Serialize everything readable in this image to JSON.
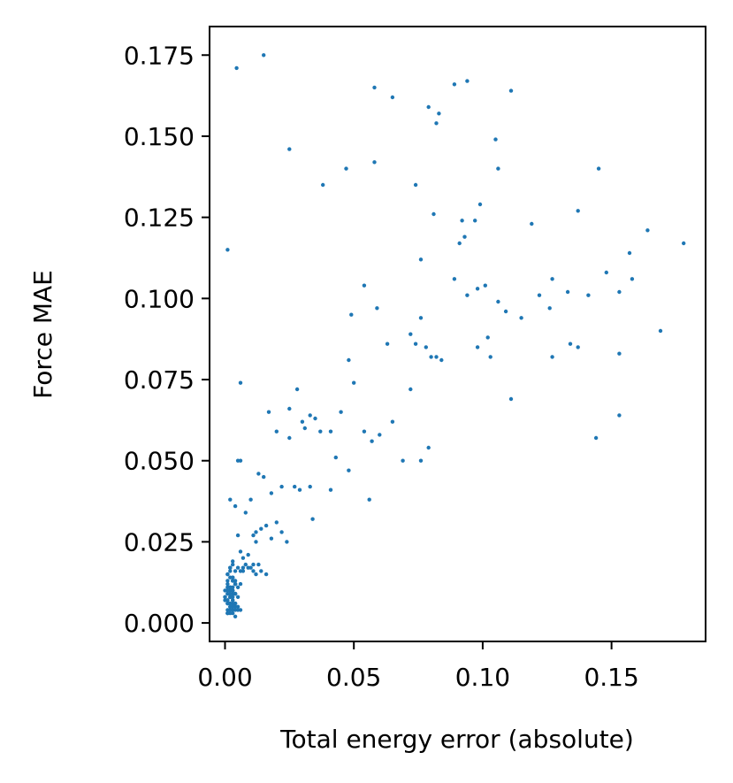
{
  "chart_data": {
    "type": "scatter",
    "title": "",
    "xlabel": "Total energy error (absolute)",
    "ylabel": "Force MAE",
    "xlim": [
      -0.006,
      0.1865
    ],
    "ylim": [
      -0.0057,
      0.1838
    ],
    "xticks": [
      0.0,
      0.05,
      0.1,
      0.15
    ],
    "xtick_labels": [
      "0.00",
      "0.05",
      "0.10",
      "0.15"
    ],
    "yticks": [
      0.0,
      0.025,
      0.05,
      0.075,
      0.1,
      0.125,
      0.15,
      0.175
    ],
    "ytick_labels": [
      "0.000",
      "0.025",
      "0.050",
      "0.075",
      "0.100",
      "0.125",
      "0.150",
      "0.175"
    ],
    "grid": false,
    "marker_color": "#1f77b4",
    "series": [
      {
        "x": [
          0.0045,
          0.015,
          0.001,
          0.006,
          0.025,
          0.047,
          0.058,
          0.065,
          0.038,
          0.058,
          0.089,
          0.094,
          0.111,
          0.079,
          0.083,
          0.082,
          0.105,
          0.106,
          0.074,
          0.081,
          0.092,
          0.097,
          0.099,
          0.091,
          0.093,
          0.119,
          0.137,
          0.145,
          0.164,
          0.178,
          0.157,
          0.158,
          0.127,
          0.122,
          0.133,
          0.141,
          0.148,
          0.153,
          0.126,
          0.115,
          0.106,
          0.101,
          0.098,
          0.089,
          0.094,
          0.076,
          0.054,
          0.059,
          0.049,
          0.048,
          0.063,
          0.082,
          0.072,
          0.076,
          0.078,
          0.074,
          0.084,
          0.08,
          0.098,
          0.102,
          0.103,
          0.109,
          0.134,
          0.137,
          0.127,
          0.153,
          0.169,
          0.111,
          0.005,
          0.05,
          0.072,
          0.028,
          0.025,
          0.03,
          0.033,
          0.041,
          0.045,
          0.065,
          0.054,
          0.06,
          0.057,
          0.069,
          0.076,
          0.079,
          0.017,
          0.025,
          0.02,
          0.031,
          0.037,
          0.035,
          0.048,
          0.043,
          0.056,
          0.144,
          0.153,
          0.006,
          0.013,
          0.015,
          0.018,
          0.022,
          0.027,
          0.029,
          0.033,
          0.034,
          0.041,
          0.002,
          0.004,
          0.008,
          0.01,
          0.012,
          0.016,
          0.02,
          0.022,
          0.018,
          0.024,
          0.014,
          0.011,
          0.009,
          0.007,
          0.005,
          0.003,
          0.006,
          0.012,
          0.013,
          0.002,
          0.003,
          0.004,
          0.005,
          0.001,
          0.002,
          0.003,
          0.004,
          0.006,
          0.007,
          0.008,
          0.01,
          0.011,
          0.012,
          0.001,
          0.002,
          0.003,
          0.004,
          0.005,
          0.0,
          0.001,
          0.002,
          0.003,
          0.004,
          0.001,
          0.002,
          0.003,
          0.004,
          0.001,
          0.002,
          0.003,
          0.0,
          0.001,
          0.002,
          0.003,
          0.004,
          0.005,
          0.0,
          0.001,
          0.002,
          0.003,
          0.001,
          0.002,
          0.003,
          0.004,
          0.0,
          0.001,
          0.002,
          0.003,
          0.004,
          0.001,
          0.002,
          0.003,
          0.001,
          0.002,
          0.003,
          0.004,
          0.005,
          0.001,
          0.002,
          0.003,
          0.001,
          0.002,
          0.003,
          0.004,
          0.001,
          0.002,
          0.003,
          0.004,
          0.005,
          0.006,
          0.001,
          0.002,
          0.003,
          0.001,
          0.002,
          0.003,
          0.004,
          0.001,
          0.002,
          0.003,
          0.004,
          0.006,
          0.007,
          0.009,
          0.011,
          0.014,
          0.016,
          0.001,
          0.002,
          0.003,
          0.004,
          0.003
        ],
        "y": [
          0.171,
          0.175,
          0.115,
          0.074,
          0.146,
          0.14,
          0.142,
          0.162,
          0.135,
          0.165,
          0.166,
          0.167,
          0.164,
          0.159,
          0.157,
          0.154,
          0.149,
          0.14,
          0.135,
          0.126,
          0.124,
          0.124,
          0.129,
          0.117,
          0.119,
          0.123,
          0.127,
          0.14,
          0.121,
          0.117,
          0.114,
          0.106,
          0.106,
          0.101,
          0.102,
          0.101,
          0.108,
          0.102,
          0.097,
          0.094,
          0.099,
          0.104,
          0.103,
          0.106,
          0.101,
          0.112,
          0.104,
          0.097,
          0.095,
          0.081,
          0.086,
          0.082,
          0.089,
          0.094,
          0.085,
          0.086,
          0.081,
          0.082,
          0.085,
          0.088,
          0.082,
          0.096,
          0.086,
          0.085,
          0.082,
          0.083,
          0.09,
          0.069,
          0.05,
          0.074,
          0.072,
          0.072,
          0.066,
          0.062,
          0.064,
          0.059,
          0.065,
          0.062,
          0.059,
          0.058,
          0.056,
          0.05,
          0.05,
          0.054,
          0.065,
          0.057,
          0.059,
          0.06,
          0.059,
          0.063,
          0.047,
          0.051,
          0.038,
          0.057,
          0.064,
          0.05,
          0.046,
          0.045,
          0.04,
          0.042,
          0.042,
          0.041,
          0.042,
          0.032,
          0.041,
          0.038,
          0.036,
          0.034,
          0.038,
          0.028,
          0.03,
          0.031,
          0.028,
          0.026,
          0.025,
          0.029,
          0.027,
          0.021,
          0.02,
          0.027,
          0.019,
          0.022,
          0.025,
          0.018,
          0.017,
          0.018,
          0.016,
          0.017,
          0.015,
          0.016,
          0.014,
          0.013,
          0.012,
          0.016,
          0.018,
          0.017,
          0.016,
          0.015,
          0.013,
          0.017,
          0.014,
          0.012,
          0.011,
          0.01,
          0.009,
          0.008,
          0.013,
          0.012,
          0.011,
          0.01,
          0.009,
          0.012,
          0.011,
          0.01,
          0.009,
          0.008,
          0.007,
          0.011,
          0.01,
          0.009,
          0.008,
          0.007,
          0.006,
          0.008,
          0.007,
          0.006,
          0.005,
          0.01,
          0.009,
          0.008,
          0.007,
          0.006,
          0.005,
          0.004,
          0.007,
          0.006,
          0.005,
          0.004,
          0.003,
          0.006,
          0.005,
          0.004,
          0.003,
          0.005,
          0.004,
          0.003,
          0.004,
          0.003,
          0.002,
          0.009,
          0.008,
          0.007,
          0.006,
          0.005,
          0.004,
          0.01,
          0.009,
          0.008,
          0.012,
          0.011,
          0.01,
          0.009,
          0.015,
          0.014,
          0.013,
          0.012,
          0.016,
          0.017,
          0.017,
          0.018,
          0.016,
          0.015,
          0.003,
          0.004,
          0.005,
          0.006,
          0.011
        ]
      }
    ]
  }
}
